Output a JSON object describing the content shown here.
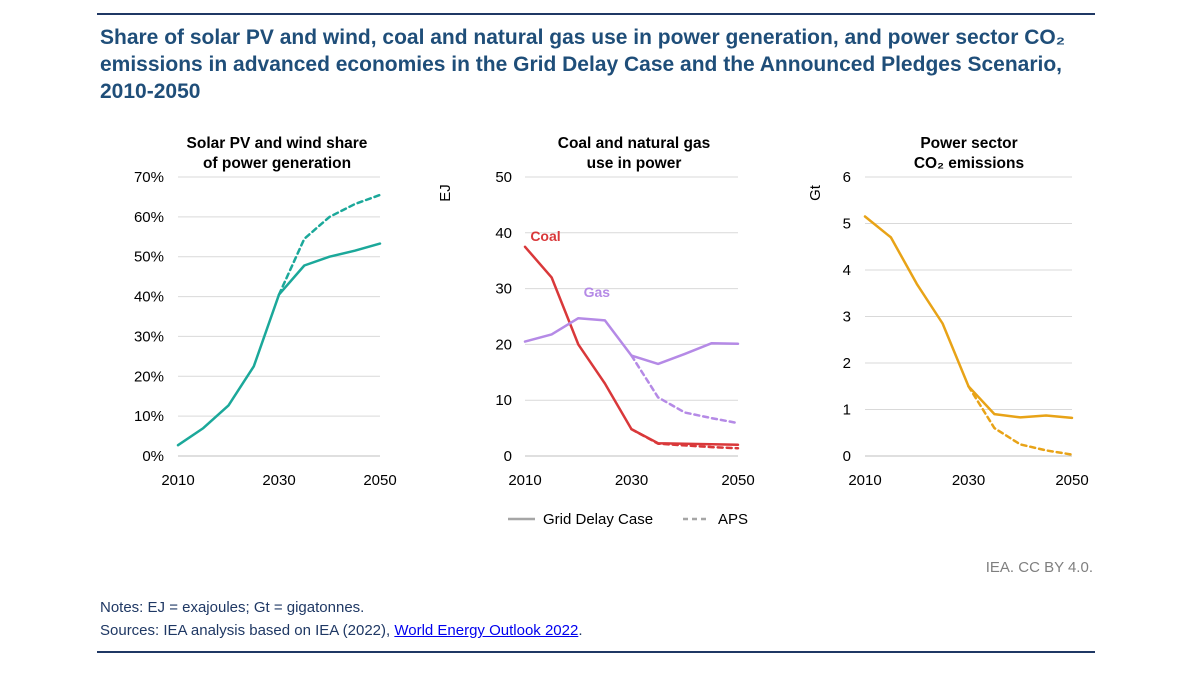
{
  "title": "Share of solar PV and wind, coal and natural gas use in power generation, and power sector CO₂ emissions in advanced economies in the Grid Delay Case and the Announced Pledges Scenario, 2010-2050",
  "credit": "IEA. CC BY 4.0.",
  "notes": "Notes: EJ = exajoules; Gt = gigatonnes.",
  "sources_prefix": "Sources: IEA analysis based on IEA (2022), ",
  "sources_link": "World Energy Outlook 2022",
  "sources_suffix": ".",
  "legend": {
    "solid_label": "Grid Delay Case",
    "dashed_label": "APS"
  },
  "colors": {
    "teal": "#1ba89a",
    "red": "#d9383a",
    "purple": "#b58ae6",
    "gold": "#e8a317",
    "grid": "#d9d9d9",
    "title": "#1f4e79"
  },
  "chart_data": [
    {
      "type": "line",
      "title": [
        "Solar PV and wind share",
        "of power generation"
      ],
      "ylabel": "",
      "ylim": [
        0,
        70
      ],
      "yticks": [
        0,
        10,
        20,
        30,
        40,
        50,
        60,
        70
      ],
      "ytick_labels": [
        "0%",
        "10%",
        "20%",
        "30%",
        "40%",
        "50%",
        "60%",
        "70%"
      ],
      "xlim": [
        2010,
        2050
      ],
      "xticks": [
        2010,
        2030,
        2050
      ],
      "x": [
        2010,
        2015,
        2020,
        2025,
        2030,
        2035,
        2040,
        2045,
        2050
      ],
      "series": [
        {
          "name": "Grid Delay Case",
          "style": "solid",
          "color": "#1ba89a",
          "values": [
            2.7,
            7,
            12.7,
            22.5,
            40.5,
            47.8,
            50,
            51.5,
            53.3
          ]
        },
        {
          "name": "APS",
          "style": "dashed",
          "color": "#1ba89a",
          "x": [
            2030,
            2035,
            2040,
            2045,
            2050
          ],
          "values": [
            40.5,
            54.5,
            60,
            63.2,
            65.5
          ]
        }
      ]
    },
    {
      "type": "line",
      "title": [
        "Coal and natural gas",
        "use in power"
      ],
      "ylabel": "EJ",
      "ylim": [
        0,
        50
      ],
      "yticks": [
        0,
        10,
        20,
        30,
        40,
        50
      ],
      "ytick_labels": [
        "0",
        "10",
        "20",
        "30",
        "40",
        "50"
      ],
      "xlim": [
        2010,
        2050
      ],
      "xticks": [
        2010,
        2030,
        2050
      ],
      "x": [
        2010,
        2015,
        2020,
        2025,
        2030,
        2035,
        2040,
        2045,
        2050
      ],
      "annotations": [
        {
          "text": "Coal",
          "color": "#d9383a",
          "x": 2011,
          "y": 38.5
        },
        {
          "text": "Gas",
          "color": "#b58ae6",
          "x": 2021,
          "y": 28.5
        }
      ],
      "series": [
        {
          "name": "Coal - Grid Delay Case",
          "style": "solid",
          "color": "#d9383a",
          "values": [
            37.5,
            32,
            20,
            13,
            4.8,
            2.3,
            2.2,
            2.1,
            2
          ]
        },
        {
          "name": "Coal - APS",
          "style": "dashed",
          "color": "#d9383a",
          "x": [
            2030,
            2035,
            2040,
            2045,
            2050
          ],
          "values": [
            4.8,
            2.2,
            1.9,
            1.6,
            1.4
          ]
        },
        {
          "name": "Gas - Grid Delay Case",
          "style": "solid",
          "color": "#b58ae6",
          "values": [
            20.5,
            21.8,
            24.7,
            24.3,
            18,
            16.5,
            18.3,
            20.2,
            20.1
          ]
        },
        {
          "name": "Gas - APS",
          "style": "dashed",
          "color": "#b58ae6",
          "x": [
            2030,
            2035,
            2040,
            2045,
            2050
          ],
          "values": [
            18,
            10.5,
            7.8,
            6.8,
            5.9
          ]
        }
      ]
    },
    {
      "type": "line",
      "title": [
        "Power sector",
        "CO₂ emissions"
      ],
      "ylabel": "Gt",
      "ylim": [
        0,
        6
      ],
      "yticks": [
        0,
        1,
        2,
        3,
        4,
        5,
        6
      ],
      "ytick_labels": [
        "0",
        "1",
        "2",
        "3",
        "4",
        "5",
        "6"
      ],
      "xlim": [
        2010,
        2050
      ],
      "xticks": [
        2010,
        2030,
        2050
      ],
      "x": [
        2010,
        2015,
        2020,
        2025,
        2030,
        2035,
        2040,
        2045,
        2050
      ],
      "series": [
        {
          "name": "Grid Delay Case",
          "style": "solid",
          "color": "#e8a317",
          "values": [
            5.15,
            4.7,
            3.7,
            2.85,
            1.5,
            0.9,
            0.83,
            0.87,
            0.82
          ]
        },
        {
          "name": "APS",
          "style": "dashed",
          "color": "#e8a317",
          "x": [
            2030,
            2035,
            2040,
            2045,
            2050
          ],
          "values": [
            1.5,
            0.6,
            0.25,
            0.12,
            0.03
          ]
        }
      ]
    }
  ]
}
